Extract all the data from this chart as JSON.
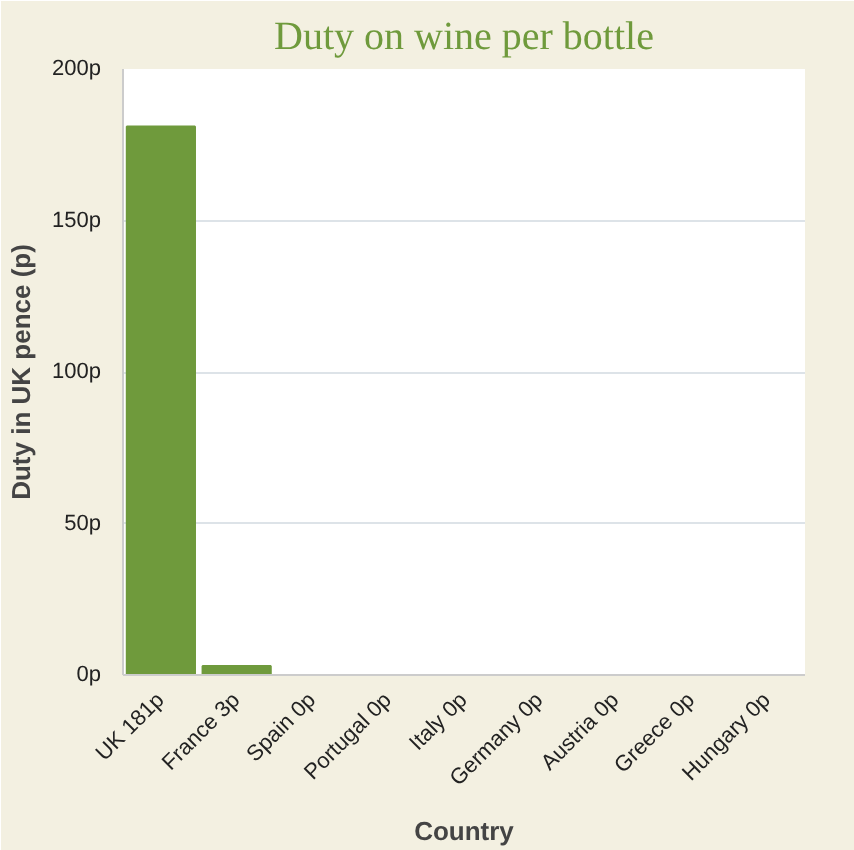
{
  "chart_data": {
    "type": "bar",
    "title": "Duty on wine per bottle",
    "xlabel": "Country",
    "ylabel": "Duty in UK pence (p)",
    "categories": [
      "UK 181p",
      "France 3p",
      "Spain 0p",
      "Portugal 0p",
      "Italy 0p",
      "Germany 0p",
      "Austria 0p",
      "Greece 0p",
      "Hungary 0p"
    ],
    "values": [
      181,
      3,
      0,
      0,
      0,
      0,
      0,
      0,
      0
    ],
    "color": "#6f9a3c",
    "ylim": [
      0,
      200
    ],
    "yticks": [
      {
        "value": 0,
        "label": "0p"
      },
      {
        "value": 50,
        "label": "50p"
      },
      {
        "value": 100,
        "label": "100p"
      },
      {
        "value": 150,
        "label": "150p"
      },
      {
        "value": 200,
        "label": "200p"
      }
    ],
    "grid": "y"
  }
}
